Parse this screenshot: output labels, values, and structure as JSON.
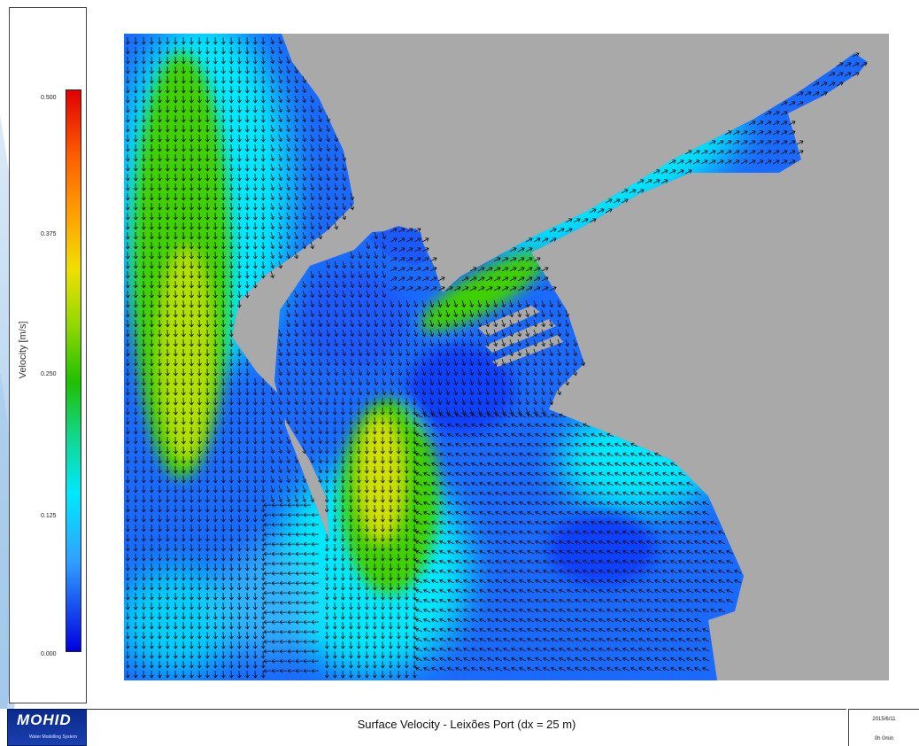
{
  "legend": {
    "axis_title": "Velocity  [m/s]",
    "ticks": [
      "0.500",
      "0.375",
      "0.250",
      "0.125",
      "0.000"
    ],
    "min": 0.0,
    "max": 0.5,
    "colors": [
      "#e00000",
      "#ff6000",
      "#ffa000",
      "#f0e000",
      "#90d800",
      "#20c000",
      "#10d890",
      "#00e8ff",
      "#30a0ff",
      "#0000e0"
    ]
  },
  "map": {
    "land_color": "#a9a9a9",
    "background_color": "#ffffff"
  },
  "footer": {
    "logo": "MOHID",
    "logo_subtitle": "Water Modelling System",
    "title": "Surface Velocity - Leixões Port (dx = 25 m)",
    "date": "2015/6/11",
    "time": "0h 0min"
  }
}
